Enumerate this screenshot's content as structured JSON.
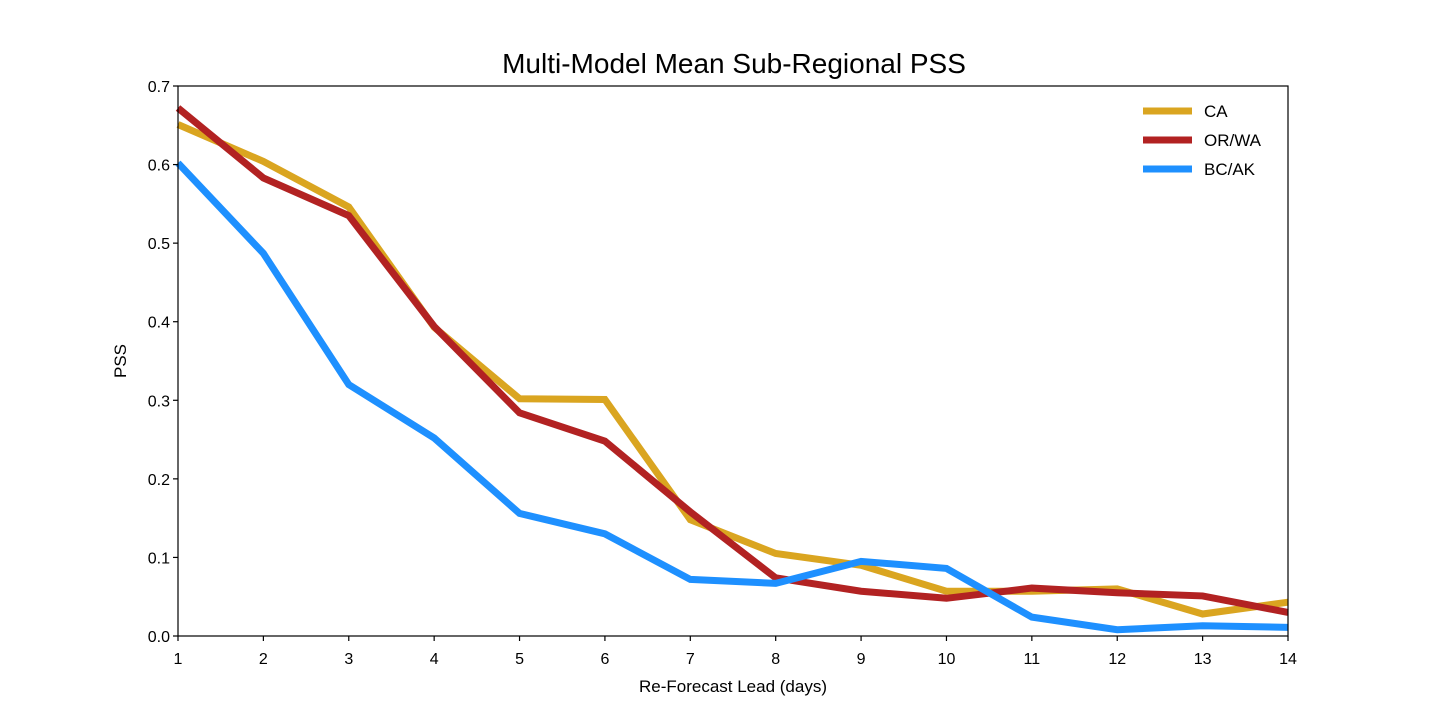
{
  "chart_data": {
    "type": "line",
    "title": "Multi-Model Mean Sub-Regional PSS",
    "xlabel": "Re-Forecast Lead (days)",
    "ylabel": "PSS",
    "x": [
      1,
      2,
      3,
      4,
      5,
      6,
      7,
      8,
      9,
      10,
      11,
      12,
      13,
      14
    ],
    "xlim": [
      1,
      14
    ],
    "ylim": [
      0,
      0.7
    ],
    "xticks": [
      "1",
      "2",
      "3",
      "4",
      "5",
      "6",
      "7",
      "8",
      "9",
      "10",
      "11",
      "12",
      "13",
      "14"
    ],
    "yticks": [
      "0.0",
      "0.1",
      "0.2",
      "0.3",
      "0.4",
      "0.5",
      "0.6",
      "0.7"
    ],
    "grid": false,
    "legend_position": "top-right",
    "series": [
      {
        "name": "CA",
        "color": "#DAA520",
        "values": [
          0.651,
          0.604,
          0.546,
          0.393,
          0.302,
          0.301,
          0.148,
          0.105,
          0.09,
          0.057,
          0.057,
          0.06,
          0.028,
          0.043
        ]
      },
      {
        "name": "OR/WA",
        "color": "#B22222",
        "values": [
          0.672,
          0.583,
          0.535,
          0.394,
          0.284,
          0.248,
          0.158,
          0.074,
          0.057,
          0.048,
          0.061,
          0.055,
          0.051,
          0.03
        ]
      },
      {
        "name": "BC/AK",
        "color": "#1E90FF",
        "values": [
          0.602,
          0.487,
          0.32,
          0.252,
          0.156,
          0.13,
          0.072,
          0.067,
          0.095,
          0.086,
          0.024,
          0.008,
          0.013,
          0.011
        ]
      }
    ]
  }
}
